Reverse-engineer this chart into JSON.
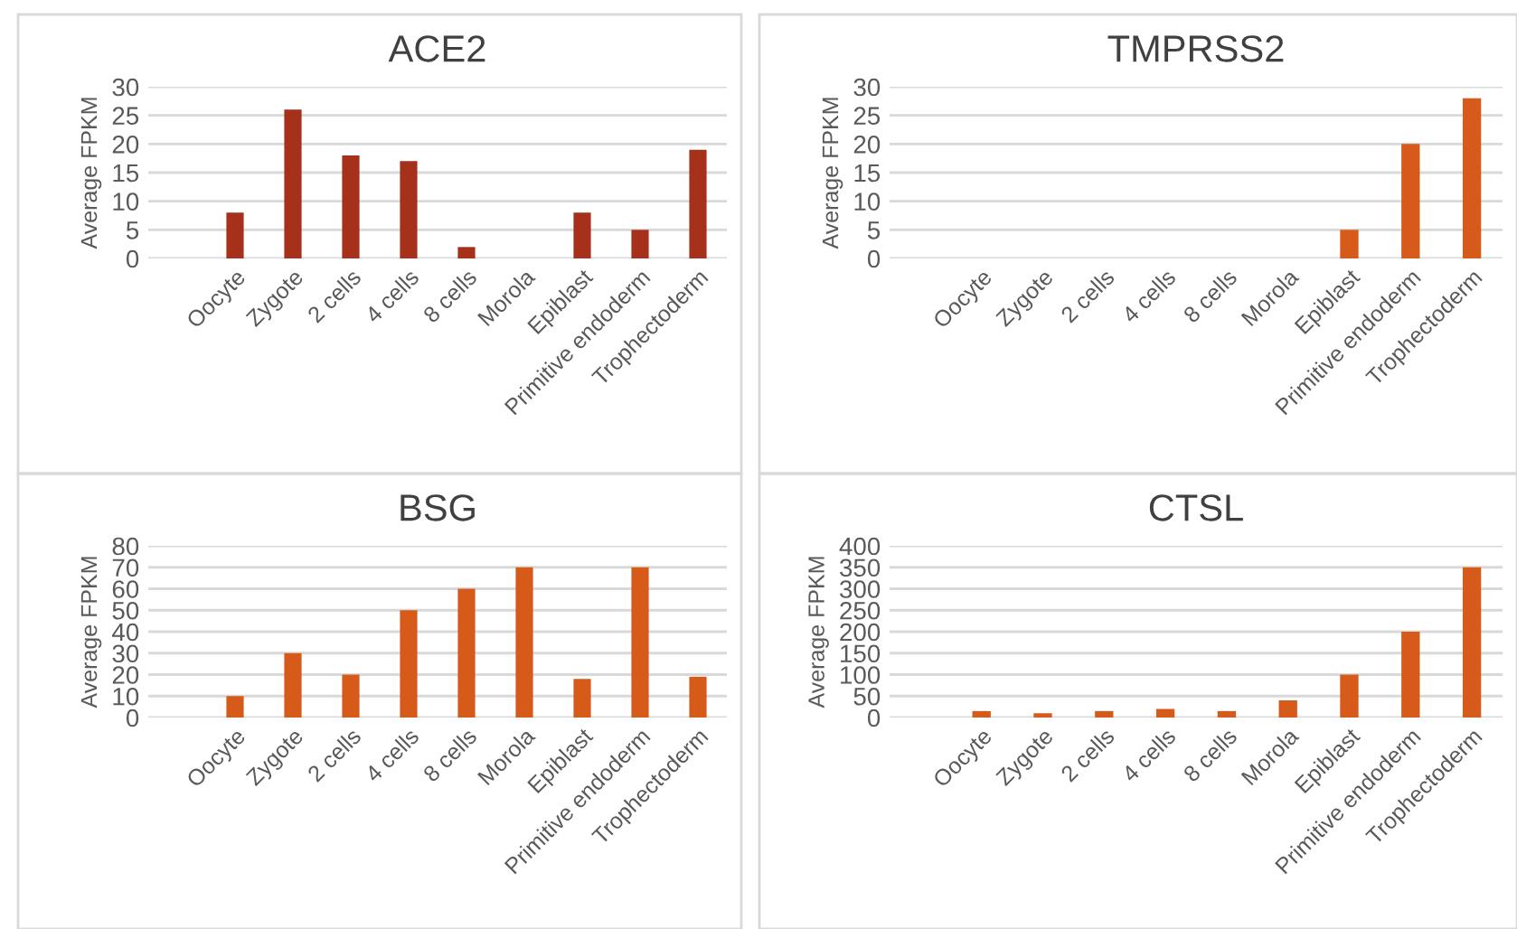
{
  "chart_data": [
    {
      "type": "bar",
      "title": "ACE2",
      "ylabel": "Average FPKM",
      "categories": [
        "Oocyte",
        "Zygote",
        "2 cells",
        "4 cells",
        "8 cells",
        "Morola",
        "Epiblast",
        "Primitive endoderm",
        "Trophectoderm"
      ],
      "values": [
        8,
        26,
        18,
        17,
        2,
        0,
        8,
        5,
        19
      ],
      "color": "#a5311a",
      "ylim": [
        0,
        30
      ],
      "yticks": [
        0,
        5,
        10,
        15,
        20,
        25,
        30
      ],
      "grid": "y",
      "legend": false
    },
    {
      "type": "bar",
      "title": "TMPRSS2",
      "ylabel": "Average FPKM",
      "categories": [
        "Oocyte",
        "Zygote",
        "2 cells",
        "4 cells",
        "8 cells",
        "Morola",
        "Epiblast",
        "Primitive endoderm",
        "Trophectoderm"
      ],
      "values": [
        0,
        0,
        0,
        0,
        0,
        0,
        5,
        20,
        28
      ],
      "color": "#d65a1a",
      "ylim": [
        0,
        30
      ],
      "yticks": [
        0,
        5,
        10,
        15,
        20,
        25,
        30
      ],
      "grid": "y",
      "legend": false
    },
    {
      "type": "bar",
      "title": "BSG",
      "ylabel": "Average FPKM",
      "categories": [
        "Oocyte",
        "Zygote",
        "2 cells",
        "4 cells",
        "8 cells",
        "Morola",
        "Epiblast",
        "Primitive endoderm",
        "Trophectoderm"
      ],
      "values": [
        10,
        30,
        20,
        50,
        60,
        70,
        18,
        70,
        19
      ],
      "color": "#d65a1a",
      "ylim": [
        0,
        80
      ],
      "yticks": [
        0,
        10,
        20,
        30,
        40,
        50,
        60,
        70,
        80
      ],
      "grid": "y",
      "legend": false
    },
    {
      "type": "bar",
      "title": "CTSL",
      "ylabel": "Average FPKM",
      "categories": [
        "Oocyte",
        "Zygote",
        "2 cells",
        "4 cells",
        "8 cells",
        "Morola",
        "Epiblast",
        "Primitive endoderm",
        "Trophectoderm"
      ],
      "values": [
        15,
        10,
        15,
        20,
        15,
        40,
        100,
        200,
        350
      ],
      "color": "#d65a1a",
      "ylim": [
        0,
        400
      ],
      "yticks": [
        0,
        50,
        100,
        150,
        200,
        250,
        300,
        350,
        400
      ],
      "grid": "y",
      "legend": false
    }
  ]
}
